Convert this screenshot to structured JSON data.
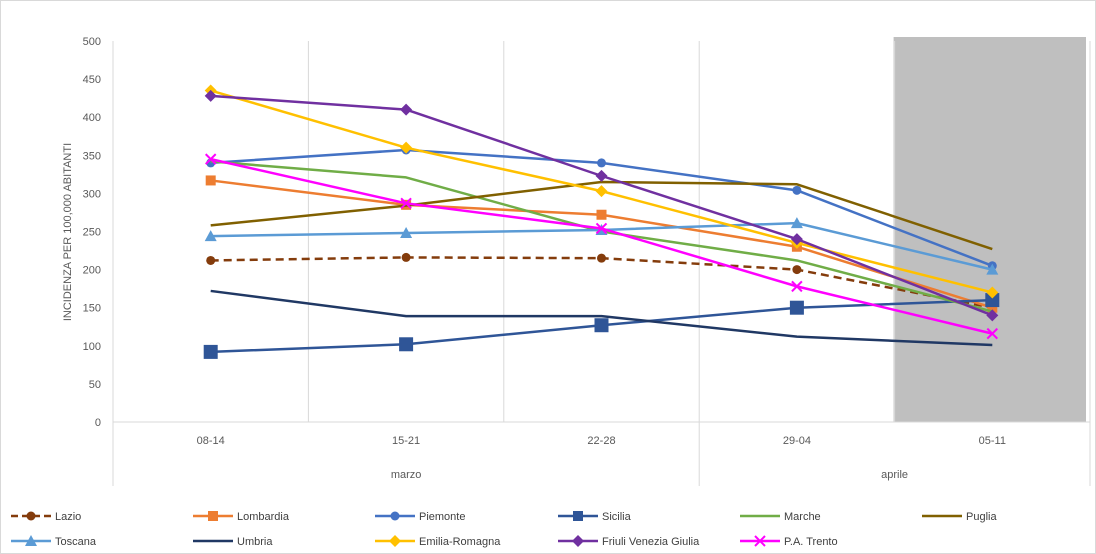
{
  "chart_data": {
    "type": "line",
    "title": "",
    "ylabel": "INCIDENZA PER 100,000 ABITANTI",
    "xlabel": "",
    "ylim": [
      0,
      500
    ],
    "yticks": [
      0,
      50,
      100,
      150,
      200,
      250,
      300,
      350,
      400,
      450,
      500
    ],
    "categories": [
      "08-14",
      "15-21",
      "22-28",
      "29-04",
      "05-11"
    ],
    "groups": [
      {
        "label": "marzo",
        "span": 3
      },
      {
        "label": "aprile",
        "span": 2
      }
    ],
    "shaded_category": "05-11",
    "shade_color": "#bfbfbf",
    "grid": true,
    "legend_position": "bottom",
    "series": [
      {
        "name": "Lazio",
        "values": [
          212,
          216,
          215,
          200,
          150
        ],
        "color": "#843c0c",
        "marker": "circle",
        "dash": true
      },
      {
        "name": "Lombardia",
        "values": [
          317,
          285,
          272,
          230,
          150
        ],
        "color": "#ed7d31",
        "marker": "square",
        "dash": false
      },
      {
        "name": "Piemonte",
        "values": [
          340,
          357,
          340,
          304,
          205
        ],
        "color": "#4472c4",
        "marker": "circle",
        "dash": false
      },
      {
        "name": "Sicilia",
        "values": [
          92,
          102,
          127,
          150,
          160
        ],
        "color": "#2f5597",
        "marker": "square-lg",
        "dash": false
      },
      {
        "name": "Marche",
        "values": [
          342,
          321,
          250,
          212,
          145
        ],
        "color": "#70ad47",
        "marker": "none",
        "dash": false
      },
      {
        "name": "Puglia",
        "values": [
          258,
          284,
          315,
          312,
          227
        ],
        "color": "#806000",
        "marker": "none",
        "dash": false
      },
      {
        "name": "Toscana",
        "values": [
          244,
          248,
          252,
          261,
          200
        ],
        "color": "#5b9bd5",
        "marker": "triangle",
        "dash": false
      },
      {
        "name": "Umbria",
        "values": [
          172,
          139,
          139,
          112,
          101
        ],
        "color": "#203864",
        "marker": "none",
        "dash": false
      },
      {
        "name": "Emilia-Romagna",
        "values": [
          435,
          360,
          303,
          235,
          170
        ],
        "color": "#ffc000",
        "marker": "diamond",
        "dash": false
      },
      {
        "name": "Friuli Venezia Giulia",
        "values": [
          428,
          410,
          323,
          240,
          140
        ],
        "color": "#7030a0",
        "marker": "diamond",
        "dash": false
      },
      {
        "name": "P.A. Trento",
        "values": [
          345,
          287,
          254,
          178,
          116
        ],
        "color": "#ff00ff",
        "marker": "x",
        "dash": false
      }
    ]
  }
}
